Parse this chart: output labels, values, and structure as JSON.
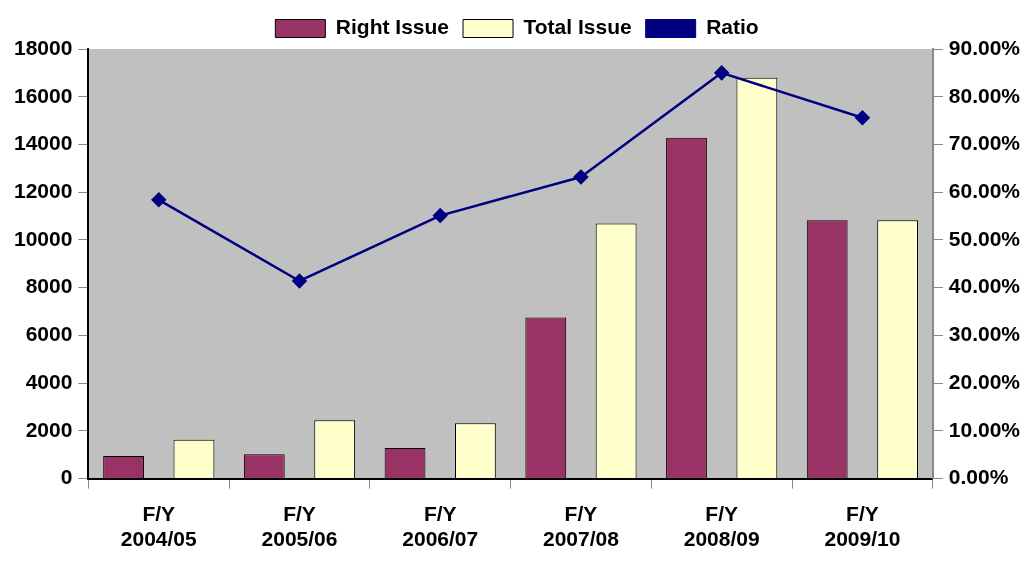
{
  "chart_data": {
    "type": "bar",
    "categories": [
      "F/Y\n2004/05",
      "F/Y\n2005/06",
      "F/Y\n2006/07",
      "F/Y\n2007/08",
      "F/Y\n2008/09",
      "F/Y\n2009/10"
    ],
    "series": [
      {
        "name": "Right Issue",
        "color": "#993366",
        "values": [
          950,
          1020,
          1280,
          6750,
          14280,
          10820
        ]
      },
      {
        "name": "Total Issue",
        "color": "#ffffcc",
        "values": [
          1630,
          2450,
          2320,
          10690,
          16800,
          10820
        ]
      },
      {
        "name": "Ratio",
        "type": "line",
        "axis": "y2",
        "color": "#000080",
        "values": [
          58.4,
          41.4,
          55.1,
          63.2,
          85,
          75.6
        ]
      }
    ],
    "ylim": [
      0,
      18000
    ],
    "yticks": [
      0,
      2000,
      4000,
      6000,
      8000,
      10000,
      12000,
      14000,
      16000,
      18000
    ],
    "y2lim": [
      0,
      90
    ],
    "y2ticks": [
      {
        "value": 0,
        "label": "0.00%"
      },
      {
        "value": 10,
        "label": "10.00%"
      },
      {
        "value": 20,
        "label": "20.00%"
      },
      {
        "value": 30,
        "label": "30.00%"
      },
      {
        "value": 40,
        "label": "40.00%"
      },
      {
        "value": 50,
        "label": "50.00%"
      },
      {
        "value": 60,
        "label": "60.00%"
      },
      {
        "value": 70,
        "label": "70.00%"
      },
      {
        "value": 80,
        "label": "80.00%"
      },
      {
        "value": 90,
        "label": "90.00%"
      }
    ],
    "grid": false,
    "legend": "top",
    "marker": "diamond",
    "line_style": "solid"
  }
}
